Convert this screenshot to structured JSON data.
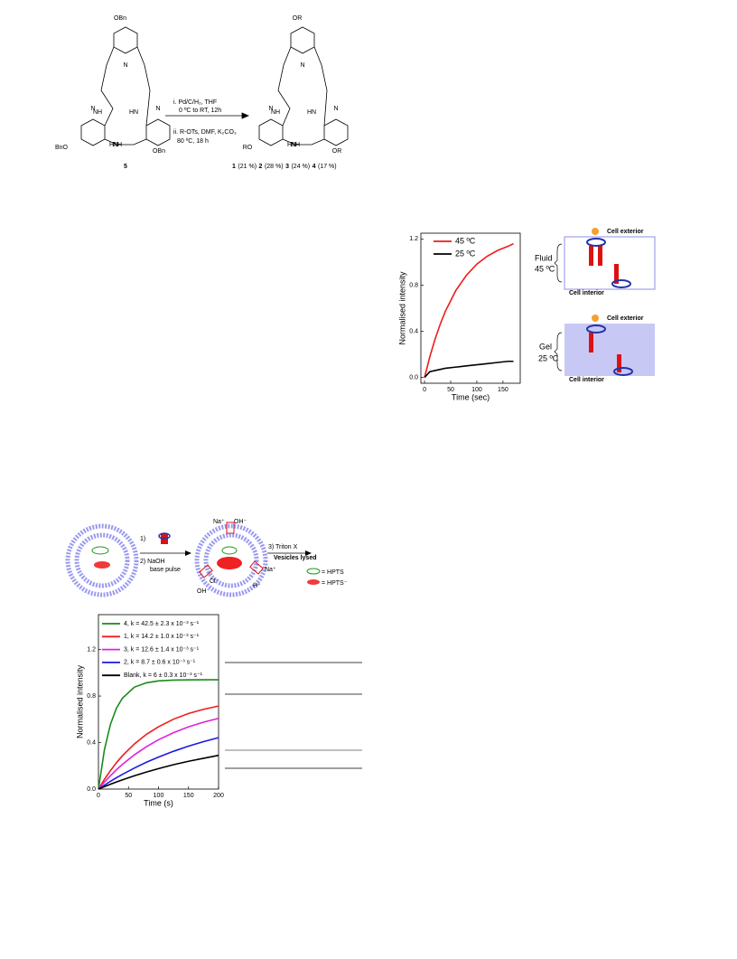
{
  "scheme": {
    "start_labels": [
      "OBn",
      "BnO",
      "OBn",
      "NH",
      "HN",
      "NH",
      "HN",
      "N",
      "N",
      "N"
    ],
    "product_labels": [
      "OR",
      "RO",
      "OR",
      "NH",
      "HN",
      "NH",
      "HN",
      "N",
      "N",
      "N"
    ],
    "reagents": [
      "i.  Pd/C/H₂, THF",
      "0 ºC to RT, 12h",
      "ii. R-OTs, DMF, K₂CO₃",
      "80 ºC, 18 h"
    ],
    "compound": "5",
    "products": [
      "1",
      "(21 %)",
      "2",
      "(28 %)",
      "3",
      "(24 %)",
      "4",
      "(17 %)"
    ]
  },
  "chart_data": [
    {
      "type": "line",
      "xlabel": "Time (sec)",
      "ylabel": "Normalised intensity",
      "x": [
        0,
        10,
        20,
        30,
        40,
        60,
        80,
        100,
        120,
        140,
        160,
        170
      ],
      "series": [
        {
          "name": "45 ºC",
          "color": "#ee1c1c",
          "values": [
            0,
            0.178,
            0.33,
            0.462,
            0.575,
            0.755,
            0.885,
            0.982,
            1.051,
            1.101,
            1.137,
            1.159
          ]
        },
        {
          "name": "25 ºC",
          "color": "#000000",
          "values": [
            0,
            0.05,
            0.06,
            0.07,
            0.08,
            0.09,
            0.1,
            0.11,
            0.12,
            0.13,
            0.14,
            0.14
          ]
        }
      ],
      "xlim": [
        -7,
        183
      ],
      "xticks": [
        0,
        50,
        100,
        150
      ],
      "ylim": [
        -0.05,
        1.25
      ],
      "yticks": [
        {
          "value": 0,
          "label": "0.0"
        },
        0.4,
        0.8,
        1.2
      ]
    },
    {
      "type": "line",
      "xlabel": "Time (s)",
      "ylabel": "Normalised intensity",
      "x": [
        0,
        10,
        20,
        30,
        40,
        60,
        80,
        100,
        125,
        150,
        175,
        200
      ],
      "series": [
        {
          "name": "4, k = 42.5 ± 2.3 x 10⁻³ s⁻¹",
          "color": "#1a8a1a",
          "values": [
            0,
            0.34,
            0.557,
            0.696,
            0.782,
            0.877,
            0.914,
            0.93,
            0.937,
            0.939,
            0.94,
            0.94
          ]
        },
        {
          "name": "1, k = 14.2 ± 1.0 x 10⁻³ s⁻¹",
          "color": "#ee1c1c",
          "values": [
            0,
            0.084,
            0.159,
            0.227,
            0.287,
            0.389,
            0.471,
            0.536,
            0.601,
            0.65,
            0.686,
            0.714
          ]
        },
        {
          "name": "3, k = 12.6 ± 1.4 x 10⁻³ s⁻¹",
          "color": "#e020e0",
          "values": [
            0,
            0.06,
            0.115,
            0.166,
            0.213,
            0.295,
            0.365,
            0.424,
            0.485,
            0.535,
            0.575,
            0.608
          ]
        },
        {
          "name": "2, k = 8.7 ± 0.6 x 10⁻³ s⁻¹",
          "color": "#1a1ae0",
          "values": [
            0,
            0.034,
            0.067,
            0.098,
            0.127,
            0.181,
            0.231,
            0.275,
            0.325,
            0.369,
            0.408,
            0.442
          ]
        },
        {
          "name": "Blank, k = 6 ± 0.3 x 10⁻³ s⁻¹",
          "color": "#000000",
          "values": [
            0,
            0.021,
            0.042,
            0.061,
            0.08,
            0.115,
            0.147,
            0.176,
            0.21,
            0.239,
            0.265,
            0.29
          ]
        }
      ],
      "xlim": [
        0,
        200
      ],
      "xticks": [
        0,
        50,
        100,
        150,
        200
      ],
      "ylim": [
        0,
        1.5
      ],
      "yticks": [
        {
          "value": 0,
          "label": "0.0"
        },
        0.4,
        0.8,
        1.2
      ]
    }
  ],
  "membrane": {
    "top": [
      "Cell exterior",
      "Fluid",
      "45 ºC",
      "Cell interior"
    ],
    "bottom": [
      "Cell exterior",
      "Gel",
      "25 ºC",
      "Cell interior"
    ]
  },
  "vesicle": {
    "steps": [
      "1)",
      "2) NaOH",
      "base pulse",
      "3) Triton X",
      "Vesicles lysed"
    ],
    "ions": [
      "Na⁺",
      "OH⁻",
      "Na⁺",
      "H⁺",
      "Cl⁻",
      "OH⁻"
    ],
    "legend": [
      "= HPTS",
      "= HPTS⁻"
    ]
  }
}
